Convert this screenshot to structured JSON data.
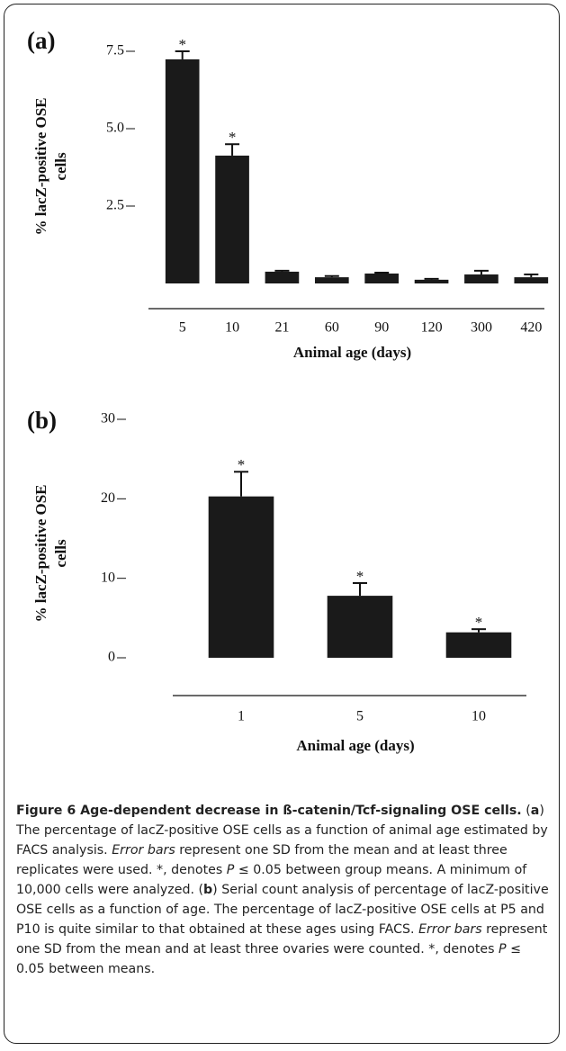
{
  "chart_data": [
    {
      "type": "bar",
      "panel_label": "(a)",
      "ylabel": [
        "% lacZ-positive OSE",
        "cells"
      ],
      "xlabel": "Animal age (days)",
      "categories": [
        "5",
        "10",
        "21",
        "60",
        "90",
        "120",
        "300",
        "420"
      ],
      "values": [
        7.24,
        4.13,
        0.38,
        0.2,
        0.32,
        0.12,
        0.29,
        0.2
      ],
      "errors": [
        0.26,
        0.37,
        0.03,
        0.04,
        0.03,
        0.03,
        0.12,
        0.09
      ],
      "significance_marks": [
        "*",
        "*",
        null,
        null,
        null,
        null,
        null,
        null
      ],
      "color": "#1a1a1a",
      "ylim": [
        0,
        7.5
      ],
      "yticks": [
        2.5,
        {
          "value": 5,
          "label": "5.0"
        },
        7.5
      ]
    },
    {
      "type": "bar",
      "panel_label": "(b)",
      "ylabel": [
        "% lacZ-positive OSE",
        "cells"
      ],
      "xlabel": "Animal age (days)",
      "categories": [
        "1",
        "5",
        "10"
      ],
      "values": [
        20.3,
        7.8,
        3.2
      ],
      "errors": [
        3.1,
        1.6,
        0.4
      ],
      "significance_marks": [
        "*",
        "*",
        "*"
      ],
      "color": "#1a1a1a",
      "ylim": [
        0,
        30
      ],
      "yticks": [
        0,
        10,
        20,
        30
      ]
    }
  ],
  "caption": {
    "title": "Figure 6 Age-dependent decrease in ß-catenin/Tcf-signaling OSE cells.",
    "runs": [
      {
        "text": " ("
      },
      {
        "text": "a",
        "bold": true
      },
      {
        "text": ") The percentage of lacZ-positive OSE cells as a function of animal age estimated by FACS analysis. "
      },
      {
        "text": "Error bars",
        "italic": true
      },
      {
        "text": " represent one SD from the mean and at least three replicates were used. *, denotes "
      },
      {
        "text": "P",
        "italic": true
      },
      {
        "text": " ≤ 0.05 between group means. A minimum of 10,000 cells were analyzed. ("
      },
      {
        "text": "b",
        "bold": true
      },
      {
        "text": ") Serial count analysis of percentage of lacZ-positive OSE cells as a function of age. The percentage of lacZ-positive OSE cells at P5 and P10 is quite similar to that obtained at these ages using FACS. "
      },
      {
        "text": "Error bars",
        "italic": true
      },
      {
        "text": " represent one SD from the mean and at least three ovaries were counted. *, denotes "
      },
      {
        "text": "P",
        "italic": true
      },
      {
        "text": " ≤ 0.05 between means."
      }
    ]
  }
}
